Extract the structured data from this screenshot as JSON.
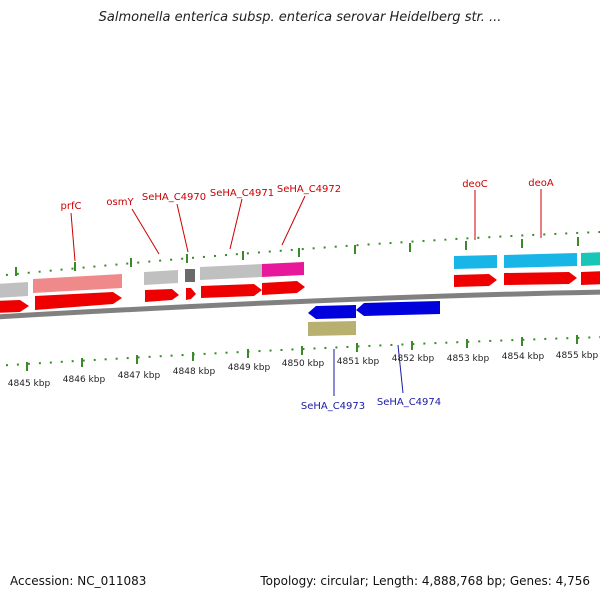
{
  "title": "Salmonella enterica subsp. enterica serovar Heidelberg str. ...",
  "footer": {
    "accession": "Accession: NC_011083",
    "summary": "Topology: circular; Length: 4,888,768 bp; Genes: 4,756"
  },
  "colors": {
    "backbone": "#808080",
    "tick": "#3a8a2a",
    "top_label": "#cc0000",
    "bottom_label": "#1a1aa8",
    "cds_forward": "#ee0000",
    "cds_reverse": "#0000dd",
    "gene_pink": "#f08a8a",
    "gene_gray": "#c0c0c0",
    "gene_darkgray": "#6a6a6a",
    "gene_magenta": "#e8189a",
    "gene_cyan": "#18b6e6",
    "gene_teal": "#18c6b8",
    "gene_olive": "#b8b070"
  },
  "kbp_labels": [
    "4845 kbp",
    "4846 kbp",
    "4847 kbp",
    "4848 kbp",
    "4849 kbp",
    "4850 kbp",
    "4851 kbp",
    "4852 kbp",
    "4853 kbp",
    "4854 kbp",
    "4855 kbp"
  ],
  "gene_labels_top": [
    "prfC",
    "osmY",
    "SeHA_C4970",
    "SeHA_C4971",
    "SeHA_C4972",
    "deoC",
    "deoA"
  ],
  "gene_labels_bottom": [
    "SeHA_C4973",
    "SeHA_C4974"
  ]
}
